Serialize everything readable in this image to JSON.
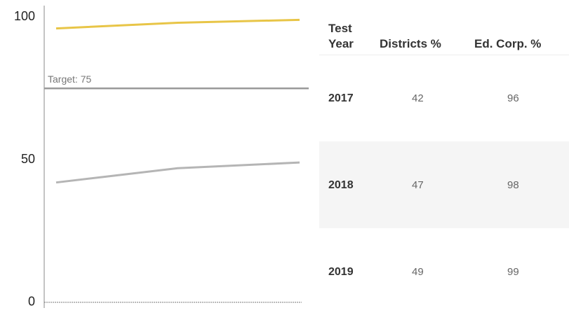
{
  "chart_data": {
    "type": "line",
    "categories": [
      "2017",
      "2018",
      "2019"
    ],
    "series": [
      {
        "name": "Districts %",
        "color": "#b5b5b5",
        "values": [
          42,
          47,
          49
        ]
      },
      {
        "name": "Ed. Corp. %",
        "color": "#e8c547",
        "values": [
          96,
          98,
          99
        ]
      }
    ],
    "ylim": [
      -2,
      104
    ],
    "yticks": [
      0,
      50,
      100
    ],
    "target": {
      "label": "Target: 75",
      "value": 75,
      "color": "#999999"
    }
  },
  "table": {
    "headers": [
      "Test Year",
      "Districts %",
      "Ed. Corp. %"
    ]
  }
}
